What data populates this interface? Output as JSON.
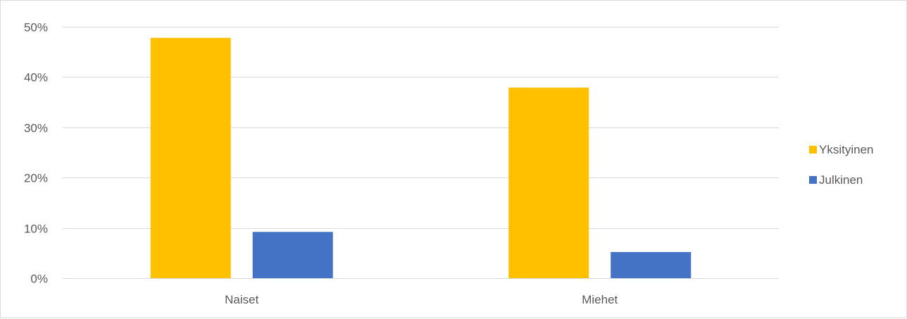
{
  "chart_data": {
    "type": "bar",
    "title": "",
    "xlabel": "",
    "ylabel": "",
    "categories": [
      "Naiset",
      "Miehet"
    ],
    "series": [
      {
        "name": "Yksityinen",
        "color": "#FFC000",
        "values": [
          0.478,
          0.379
        ]
      },
      {
        "name": "Julkinen",
        "color": "#4472C4",
        "values": [
          0.092,
          0.052
        ]
      }
    ],
    "ylim": [
      0,
      0.5
    ],
    "yticks": [
      "0%",
      "10%",
      "20%",
      "30%",
      "40%",
      "50%"
    ],
    "grid": true,
    "legend_position": "right"
  }
}
